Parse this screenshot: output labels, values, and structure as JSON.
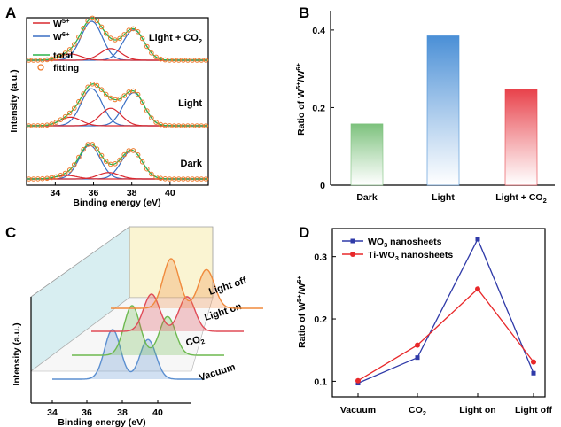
{
  "chart_data": [
    {
      "panel": "A",
      "type": "line",
      "xlabel": "Binding energy (eV)",
      "ylabel": "Intensity (a.u.)",
      "xlim": [
        32.5,
        42
      ],
      "xticks": [
        "34",
        "36",
        "38",
        "40"
      ],
      "grid": false,
      "legend_position": "top-left",
      "legend": [
        {
          "name": "W5+",
          "base": "W",
          "sup": "5+",
          "color": "#d9282f",
          "kind": "line"
        },
        {
          "name": "W6+",
          "base": "W",
          "sup": "6+",
          "color": "#3a6fc4",
          "kind": "line"
        },
        {
          "name": "total",
          "color": "#2fb44a",
          "kind": "line"
        },
        {
          "name": "fitting",
          "color": "#ee7a2b",
          "kind": "circle"
        }
      ],
      "traces": [
        {
          "label": "Light + CO",
          "label_sub": "2",
          "w6_centers": [
            35.9,
            38.1
          ],
          "w6_heights": [
            1.0,
            0.78
          ],
          "w5_centers": [
            34.8,
            36.9
          ],
          "w5_heights": [
            0.16,
            0.3
          ]
        },
        {
          "label": "Light",
          "w6_centers": [
            35.9,
            38.1
          ],
          "w6_heights": [
            0.95,
            0.85
          ],
          "w5_centers": [
            34.8,
            36.9
          ],
          "w5_heights": [
            0.22,
            0.45
          ]
        },
        {
          "label": "Dark",
          "w6_centers": [
            35.8,
            38.0
          ],
          "w6_heights": [
            0.95,
            0.8
          ],
          "w5_centers": [
            34.6,
            36.8
          ],
          "w5_heights": [
            0.1,
            0.18
          ]
        }
      ]
    },
    {
      "panel": "B",
      "type": "bar",
      "ylabel": "Ratio of W5+/W6+",
      "ylim": [
        0,
        0.45
      ],
      "yticks": [
        "0",
        "0.2",
        "0.4"
      ],
      "categories": [
        "Dark",
        "Light",
        "Light + CO2"
      ],
      "values": [
        0.158,
        0.385,
        0.248
      ],
      "colors": [
        "#7cc17c",
        "#4a8fd6",
        "#e8414a"
      ],
      "grid": false
    },
    {
      "panel": "C",
      "type": "line",
      "xlabel": "Binding energy (eV)",
      "ylabel": "Intensity (a.u.)",
      "xticks": [
        "34",
        "36",
        "38",
        "40"
      ],
      "grid": false,
      "traces": [
        {
          "label": "Vacuum",
          "color": "#5b8fd0",
          "peaks": [
            36.6,
            38.6
          ],
          "heights": [
            1.0,
            0.8
          ]
        },
        {
          "label": "CO2",
          "color": "#6db94f",
          "peaks": [
            36.6,
            38.6
          ],
          "heights": [
            1.0,
            0.78
          ]
        },
        {
          "label": "Light on",
          "color": "#e04b57",
          "peaks": [
            36.6,
            38.6
          ],
          "heights": [
            0.75,
            0.7
          ]
        },
        {
          "label": "Light off",
          "color": "#f08a3c",
          "peaks": [
            36.6,
            38.6
          ],
          "heights": [
            1.0,
            0.78
          ]
        }
      ]
    },
    {
      "panel": "D",
      "type": "line",
      "ylabel": "Ratio of W5+/W6+",
      "ylim": [
        0.075,
        0.345
      ],
      "yticks": [
        "0.1",
        "0.2",
        "0.3"
      ],
      "categories": [
        "Vacuum",
        "CO2",
        "Light on",
        "Light off"
      ],
      "legend_position": "top-left",
      "series": [
        {
          "name": "WO3 nanosheets",
          "color": "#2f3aa8",
          "marker": "square",
          "values": [
            0.097,
            0.138,
            0.328,
            0.113
          ]
        },
        {
          "name": "Ti-WO3 nanosheets",
          "color": "#e8282a",
          "marker": "circle",
          "values": [
            0.101,
            0.158,
            0.248,
            0.131
          ]
        }
      ],
      "grid": false
    }
  ]
}
